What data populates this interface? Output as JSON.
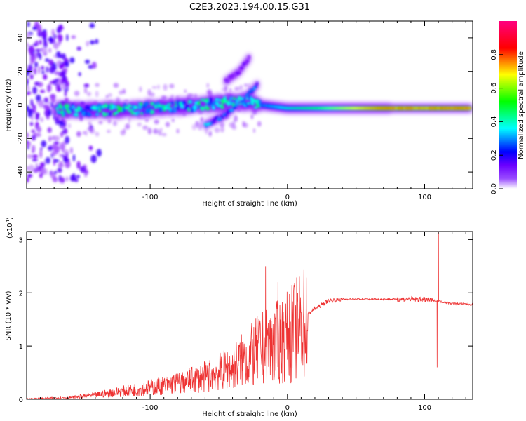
{
  "figure": {
    "title": "C2E3.2023.194.00.15.G31"
  },
  "chart_data": [
    {
      "type": "heatmap",
      "name": "spectrogram",
      "xlabel": "Height of straight line (km)",
      "ylabel": "Frequency (Hz)",
      "xlim": [
        -190,
        135
      ],
      "ylim": [
        -50,
        50
      ],
      "xticks": [
        -100,
        0,
        100
      ],
      "yticks": [
        -40,
        -20,
        0,
        20,
        40
      ],
      "colorbar": {
        "label": "Normalized spectral amplitude",
        "range": [
          0,
          1
        ],
        "ticks": [
          0.0,
          0.2,
          0.4,
          0.6,
          0.8
        ],
        "tick_labels": [
          "0.0",
          "0.2",
          "0.4",
          "0.6",
          "0.8"
        ],
        "colors": [
          "#ffffff",
          "#7b00ff",
          "#0000ff",
          "#00ffff",
          "#00ff00",
          "#ffff00",
          "#ff0000",
          "#ff0080"
        ]
      },
      "features": [
        {
          "desc": "scattered noise",
          "x_range": [
            -190,
            -160
          ],
          "y_range": [
            -45,
            48
          ]
        },
        {
          "desc": "main band",
          "x": [
            -165,
            -120,
            -80,
            -50,
            -30,
            -20,
            0,
            40,
            80,
            130
          ],
          "y": [
            -3,
            -3,
            -1,
            1,
            2,
            0,
            -2,
            -2,
            -2,
            -2
          ]
        },
        {
          "desc": "rising branch",
          "x": [
            -60,
            -45,
            -30,
            -22
          ],
          "y": [
            -12,
            -6,
            5,
            12
          ]
        },
        {
          "desc": "upper streak",
          "x": [
            -45,
            -35,
            -28
          ],
          "y": [
            14,
            20,
            28
          ]
        }
      ]
    },
    {
      "type": "line",
      "name": "snr",
      "xlabel": "Height of straight line (km)",
      "ylabel": "SNR (10 * v/v)",
      "yscale_label": "(x10",
      "yscale_exp": "4",
      "yscale_close": ")",
      "xlim": [
        -190,
        135
      ],
      "ylim": [
        0,
        3.15
      ],
      "xticks": [
        -100,
        0,
        100
      ],
      "yticks": [
        0,
        1,
        2,
        3
      ],
      "color": "#ee3333",
      "envelope": {
        "x": [
          -190,
          -160,
          -140,
          -120,
          -100,
          -80,
          -60,
          -40,
          -30,
          -20,
          -10,
          0,
          10,
          20,
          30,
          40,
          60,
          80,
          90,
          100,
          108,
          112,
          120,
          135
        ],
        "y": [
          0.01,
          0.03,
          0.08,
          0.15,
          0.22,
          0.3,
          0.42,
          0.6,
          0.8,
          1.0,
          1.1,
          1.25,
          1.5,
          1.7,
          1.85,
          1.88,
          1.88,
          1.88,
          1.88,
          1.87,
          1.85,
          1.83,
          1.8,
          1.78
        ]
      },
      "peaks": [
        {
          "x": -16,
          "y": 2.5
        },
        {
          "x": -7,
          "y": 2.2
        },
        {
          "x": 110,
          "y": 3.15
        },
        {
          "x": 109,
          "y": 0.6
        }
      ]
    }
  ]
}
